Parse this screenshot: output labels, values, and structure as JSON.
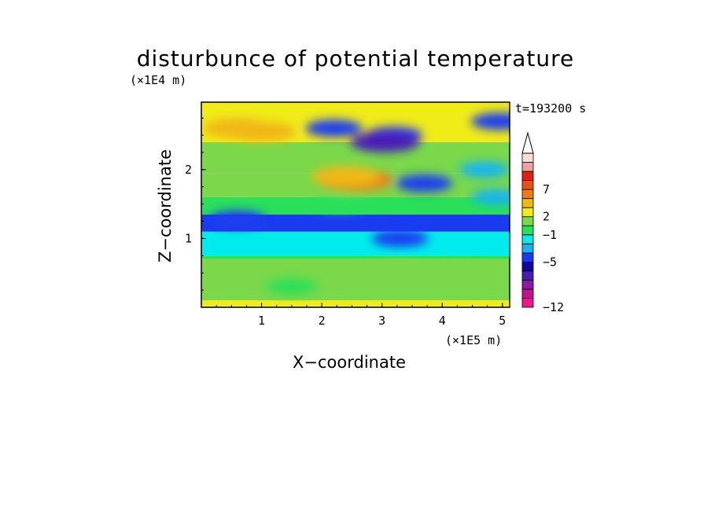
{
  "chart_data": {
    "type": "heatmap",
    "title": "disturbunce of potential temperature",
    "time_label": "t=193200 s",
    "xlabel": "X−coordinate",
    "ylabel": "Z−coordinate",
    "x_unit": "(×1E5 m)",
    "y_unit": "(×1E4 m)",
    "xlim": [
      0,
      5.12
    ],
    "ylim": [
      0,
      2.98
    ],
    "x_ticks": [
      "1",
      "2",
      "3",
      "4",
      "5"
    ],
    "y_ticks": [
      "1",
      "2"
    ],
    "colorbar": {
      "labels": [
        "7",
        "2",
        "−1",
        "−5",
        "−12"
      ],
      "label_values": [
        7,
        2,
        -1,
        -5,
        -12
      ],
      "colors": [
        "#e61a8a",
        "#c0148f",
        "#8a18a8",
        "#4a1ab8",
        "#0a0aa0",
        "#1a3cf0",
        "#18b4f0",
        "#00ecec",
        "#2ae05a",
        "#7ad84a",
        "#f0ec18",
        "#f0b814",
        "#f07a14",
        "#e8501a",
        "#e02014",
        "#f0a0a0",
        "#fadcdc"
      ]
    },
    "bands": [
      {
        "zmin": 0.0,
        "zmax": 0.1,
        "level": 3
      },
      {
        "zmin": 0.1,
        "zmax": 0.7,
        "level": 2
      },
      {
        "zmin": 0.7,
        "zmax": 0.75,
        "level": 1
      },
      {
        "zmin": 0.75,
        "zmax": 1.1,
        "level": 0
      },
      {
        "zmin": 1.1,
        "zmax": 1.35,
        "level": -2
      },
      {
        "zmin": 1.35,
        "zmax": 1.6,
        "level": 1
      },
      {
        "zmin": 1.6,
        "zmax": 1.95,
        "level": 2
      },
      {
        "zmin": 1.95,
        "zmax": 2.4,
        "level": 2
      },
      {
        "zmin": 2.4,
        "zmax": 2.98,
        "level": 3
      }
    ],
    "features": [
      {
        "x": 1.0,
        "z": 2.55,
        "level": 4
      },
      {
        "x": 0.6,
        "z": 2.6,
        "level": 4
      },
      {
        "x": 2.55,
        "z": 1.85,
        "level": 5
      },
      {
        "x": 2.4,
        "z": 1.9,
        "level": 4
      },
      {
        "x": 3.2,
        "z": 2.5,
        "level": -2
      },
      {
        "x": 3.05,
        "z": 2.4,
        "level": -4
      },
      {
        "x": 2.2,
        "z": 2.6,
        "level": -2
      },
      {
        "x": 3.7,
        "z": 1.8,
        "level": -2
      },
      {
        "x": 4.95,
        "z": 2.7,
        "level": -2
      },
      {
        "x": 4.7,
        "z": 2.0,
        "level": -1
      },
      {
        "x": 4.9,
        "z": 1.6,
        "level": -1
      },
      {
        "x": 0.6,
        "z": 1.28,
        "level": -2
      },
      {
        "x": 3.3,
        "z": 1.0,
        "level": -2
      },
      {
        "x": 2.3,
        "z": 1.5,
        "level": 1
      },
      {
        "x": 3.2,
        "z": 0.55,
        "level": 2
      },
      {
        "x": 4.2,
        "z": 0.5,
        "level": 2
      },
      {
        "x": 1.5,
        "z": 0.3,
        "level": 1
      }
    ]
  }
}
